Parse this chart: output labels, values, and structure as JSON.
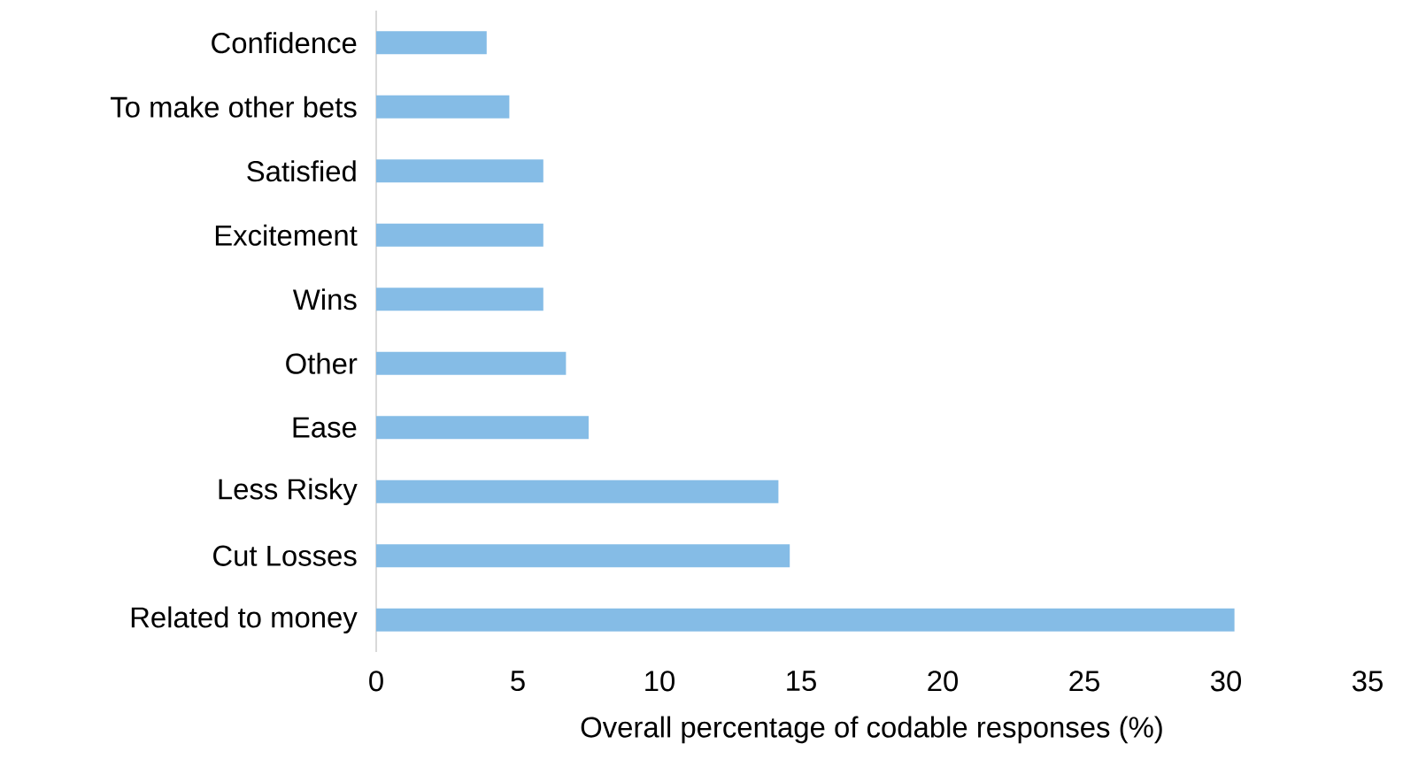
{
  "chart_data": {
    "type": "bar",
    "orientation": "horizontal",
    "xlabel": "Overall percentage of codable responses (%)",
    "categories": [
      "Confidence",
      "To make other bets",
      "Satisfied",
      "Excitement",
      "Wins",
      "Other",
      "Ease",
      "Less Risky",
      "Cut Losses",
      "Related to money"
    ],
    "values": [
      3.9,
      4.7,
      5.9,
      5.9,
      5.9,
      6.7,
      7.5,
      14.2,
      14.6,
      30.3
    ],
    "color": "#85bce6",
    "xlim": [
      0,
      35
    ],
    "xticks": [
      0,
      5,
      10,
      15,
      20,
      25,
      30,
      35
    ],
    "grid": false
  }
}
